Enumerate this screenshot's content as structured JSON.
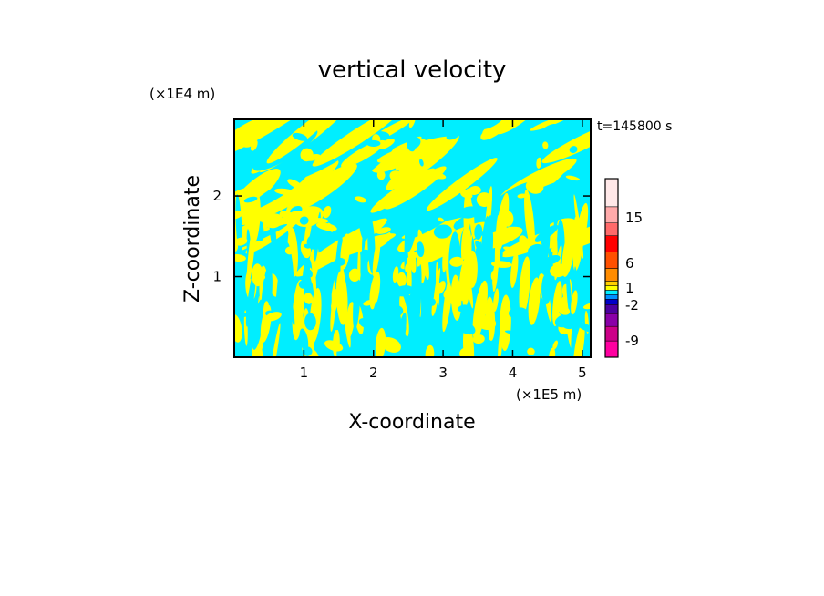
{
  "chart_data": {
    "type": "heatmap",
    "title": "vertical velocity",
    "xlabel": "X-coordinate",
    "ylabel": "Z-coordinate",
    "x_unit": "(×1E5 m)",
    "y_unit": "(×1E4 m)",
    "time_label": "t=145800 s",
    "xlim": [
      0,
      5.12
    ],
    "ylim": [
      0,
      2.95
    ],
    "xticks": [
      1,
      2,
      3,
      4,
      5
    ],
    "yticks": [
      1,
      2
    ],
    "grid": false,
    "dominant_colors": {
      "positive_small": "#ffff00",
      "negative_small": "#00eeff"
    },
    "colorbar": {
      "tick_labels": [
        "15",
        "6",
        "1",
        "-2",
        "-9"
      ],
      "tick_values": [
        15,
        6,
        1,
        -2,
        -9
      ],
      "levels": [
        {
          "color": "#ff00a0"
        },
        {
          "color": "#cc0088"
        },
        {
          "color": "#8a00a8"
        },
        {
          "color": "#4b00a0"
        },
        {
          "color": "#0000c8"
        },
        {
          "color": "#0090ff"
        },
        {
          "color": "#00eeff"
        },
        {
          "color": "#ffff00"
        },
        {
          "color": "#ffd000"
        },
        {
          "color": "#ff8c00"
        },
        {
          "color": "#ff5000"
        },
        {
          "color": "#ff0000"
        },
        {
          "color": "#ff6a6a"
        },
        {
          "color": "#ffaaaa"
        },
        {
          "color": "#ffe8e8"
        }
      ]
    }
  }
}
